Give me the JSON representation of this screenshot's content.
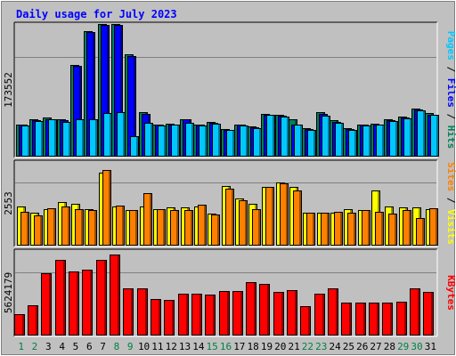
{
  "chart_data": {
    "type": "bar",
    "title": "Daily usage for July 2023",
    "background_color": "#C0C0C0",
    "grid": true,
    "categories": [
      "1",
      "2",
      "3",
      "4",
      "5",
      "6",
      "7",
      "8",
      "9",
      "10",
      "11",
      "12",
      "13",
      "14",
      "15",
      "16",
      "17",
      "18",
      "19",
      "20",
      "21",
      "22",
      "23",
      "24",
      "25",
      "26",
      "27",
      "28",
      "29",
      "30",
      "31"
    ],
    "weekend_days": [
      "1",
      "2",
      "8",
      "9",
      "15",
      "16",
      "22",
      "23",
      "29",
      "30"
    ],
    "colors": {
      "hits": "#00805C",
      "files": "#0000FF",
      "pages": "#00C8FF",
      "visits": "#FFFF00",
      "sites": "#FF8000",
      "kbytes": "#FF0000",
      "weekday_tick": "#000000",
      "weekend_tick": "#008040",
      "title": "#0000FF"
    },
    "panels": [
      {
        "id": "hits-files-pages",
        "ytick_label": "173552",
        "ymax": 173552,
        "right_labels": [
          {
            "text": "Pages",
            "color": "#00C8FF"
          },
          {
            "text": " / ",
            "color": "#000000"
          },
          {
            "text": "Files",
            "color": "#0000FF"
          },
          {
            "text": " / ",
            "color": "#000000"
          },
          {
            "text": "Hits",
            "color": "#00805C"
          }
        ],
        "series": [
          {
            "name": "Hits",
            "color": "#00805C",
            "values": [
              43000,
              49000,
              52000,
              49000,
              122000,
              167000,
              176000,
              176000,
              136000,
              59000,
              43000,
              44000,
              50000,
              43000,
              46000,
              37000,
              43000,
              40000,
              57000,
              56000,
              49000,
              38000,
              59000,
              48000,
              38000,
              43000,
              44000,
              50000,
              53000,
              64000,
              58000
            ]
          },
          {
            "name": "Files",
            "color": "#0000FF",
            "values": [
              42000,
              48000,
              50000,
              48000,
              120000,
              165000,
              175000,
              175000,
              134000,
              57000,
              42000,
              43000,
              49000,
              42000,
              45000,
              36000,
              42000,
              39000,
              56000,
              54000,
              43000,
              37000,
              57000,
              46000,
              37000,
              42000,
              43000,
              48000,
              52000,
              62000,
              56000
            ]
          },
          {
            "name": "Pages",
            "color": "#00C8FF",
            "values": [
              41000,
              47000,
              49000,
              46000,
              50000,
              49000,
              58000,
              59000,
              27000,
              45000,
              41000,
              42000,
              45000,
              41000,
              44000,
              36000,
              41000,
              38000,
              55000,
              53000,
              42000,
              36000,
              54000,
              45000,
              36000,
              41000,
              42000,
              47000,
              51000,
              61000,
              55000
            ]
          }
        ]
      },
      {
        "id": "visits-sites",
        "ytick_label": "2553",
        "ymax": 2553,
        "right_labels": [
          {
            "text": "Sites",
            "color": "#FF8000"
          },
          {
            "text": " / ",
            "color": "#000000"
          },
          {
            "text": "Visits",
            "color": "#FFFF00"
          }
        ],
        "series": [
          {
            "name": "Visits",
            "color": "#FFFF00",
            "values": [
              1220,
              1020,
              1130,
              1350,
              1300,
              1120,
              2240,
              1210,
              1100,
              1210,
              1120,
              1190,
              1180,
              1200,
              1000,
              1830,
              1460,
              1280,
              1810,
              1950,
              1820,
              1010,
              1020,
              1020,
              1130,
              1090,
              1700,
              1200,
              1180,
              1180,
              1120
            ]
          },
          {
            "name": "Sites",
            "color": "#FF8000",
            "values": [
              1050,
              940,
              1140,
              1200,
              1120,
              1090,
              2330,
              1230,
              1110,
              1620,
              1130,
              1110,
              1110,
              1260,
              960,
              1770,
              1410,
              1130,
              1820,
              1930,
              1700,
              1020,
              1010,
              1040,
              1010,
              1110,
              1040,
              980,
              1090,
              850,
              1140
            ]
          }
        ]
      },
      {
        "id": "kbytes",
        "ytick_label": "5624179",
        "ymax": 5624179,
        "right_labels": [
          {
            "text": "KBytes",
            "color": "#FF0000"
          }
        ],
        "series": [
          {
            "name": "KBytes",
            "color": "#FF0000",
            "values": [
              1430000,
              2040000,
              4190000,
              5110000,
              4280000,
              4410000,
              5110000,
              5440000,
              3190000,
              3150000,
              2430000,
              2400000,
              2830000,
              2830000,
              2750000,
              3010000,
              2990000,
              3570000,
              3500000,
              2930000,
              3070000,
              1980000,
              2800000,
              3190000,
              2240000,
              2240000,
              2240000,
              2240000,
              2260000,
              3190000,
              2960000
            ]
          }
        ]
      }
    ]
  }
}
